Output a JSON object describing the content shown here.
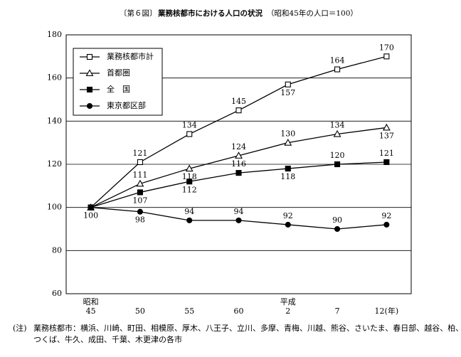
{
  "chart_data": {
    "type": "line",
    "figure_label": "〔第６図〕",
    "title": "業務核都市における人口の状況",
    "subtitle": "（昭和45年の人口＝100）",
    "categories": [
      "昭和\n45",
      "50",
      "55",
      "60",
      "平成\n2",
      "7",
      "12(年)"
    ],
    "ylim": [
      60,
      180
    ],
    "yticks": [
      60,
      80,
      100,
      120,
      140,
      160,
      180
    ],
    "grid": true,
    "legend": "upper left",
    "series": [
      {
        "name": "業務核都市計",
        "color": "#000000",
        "marker": "square-open",
        "values": [
          100,
          121,
          134,
          145,
          157,
          164,
          170
        ]
      },
      {
        "name": "首都圏",
        "color": "#000000",
        "marker": "triangle-open",
        "values": [
          100,
          111,
          118,
          124,
          130,
          134,
          137
        ]
      },
      {
        "name": "全　国",
        "color": "#000000",
        "marker": "square-filled",
        "values": [
          100,
          107,
          112,
          116,
          118,
          120,
          121
        ]
      },
      {
        "name": "東京都区部",
        "color": "#000000",
        "marker": "circle-filled",
        "values": [
          100,
          98,
          94,
          94,
          92,
          90,
          92
        ]
      }
    ],
    "note_label": "(注)",
    "note_lines": [
      "業務核都市：横浜、川崎、町田、相模原、厚木、八王子、立川、多摩、青梅、川越、熊谷、さいたま、春日部、越谷、柏、土浦、",
      "つくば、牛久、成田、千葉、木更津の各市"
    ]
  }
}
